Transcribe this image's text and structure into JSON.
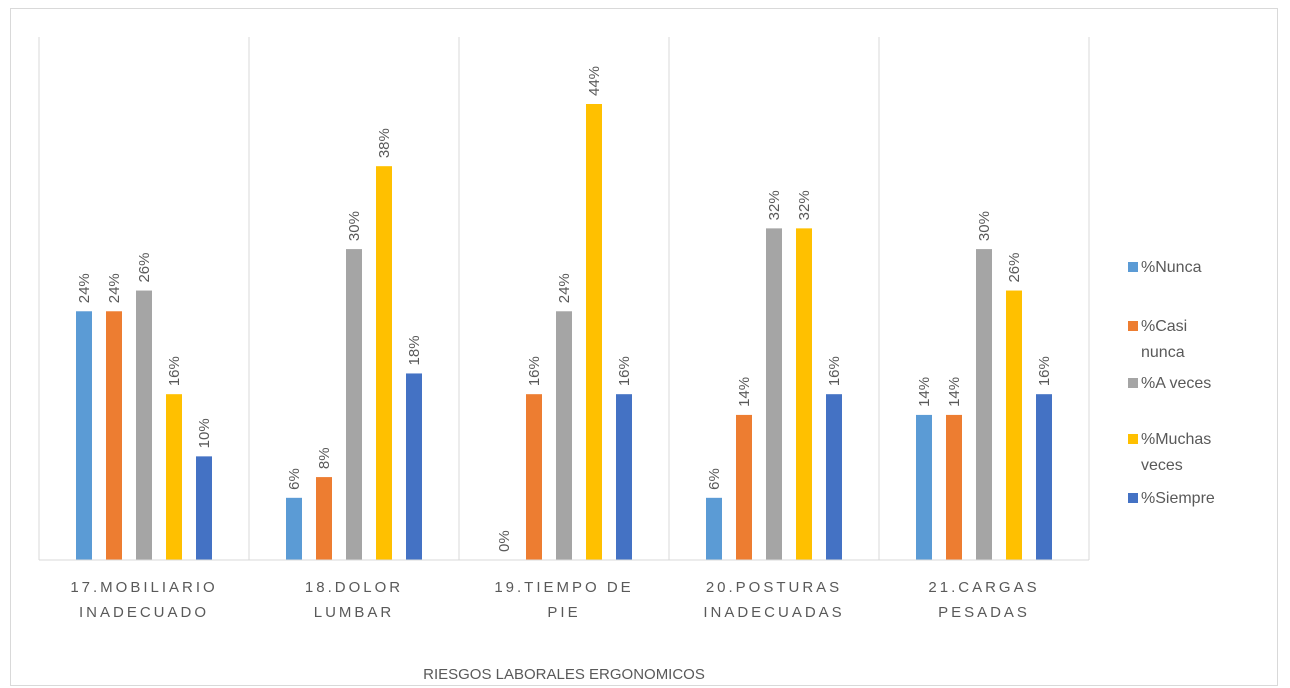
{
  "chart_data": {
    "type": "bar",
    "title": "",
    "xlabel": "RIESGOS LABORALES ERGONOMICOS",
    "ylabel": "",
    "ylim": [
      0,
      46
    ],
    "grid": "vertical separators between categories",
    "legend_position": "right",
    "categories": [
      [
        "17.MOBILIARIO",
        "INADECUADO"
      ],
      [
        "18.DOLOR",
        "LUMBAR"
      ],
      [
        "19.TIEMPO DE",
        "PIE"
      ],
      [
        "20.POSTURAS",
        "INADECUADAS"
      ],
      [
        "21.CARGAS",
        "PESADAS"
      ]
    ],
    "series": [
      {
        "name": [
          "%Nunca"
        ],
        "color": "#5b9bd5",
        "values": [
          24,
          6,
          0,
          6,
          14
        ],
        "labels": [
          "24%",
          "6%",
          "0%",
          "6%",
          "14%"
        ]
      },
      {
        "name": [
          "%Casi",
          "nunca"
        ],
        "color": "#ed7d31",
        "values": [
          24,
          8,
          16,
          14,
          14
        ],
        "labels": [
          "24%",
          "8%",
          "16%",
          "14%",
          "14%"
        ]
      },
      {
        "name": [
          "%A veces"
        ],
        "color": "#a5a5a5",
        "values": [
          26,
          30,
          24,
          32,
          30
        ],
        "labels": [
          "26%",
          "30%",
          "24%",
          "32%",
          "30%"
        ]
      },
      {
        "name": [
          "%Muchas",
          "veces"
        ],
        "color": "#ffc000",
        "values": [
          16,
          38,
          44,
          32,
          26
        ],
        "labels": [
          "16%",
          "38%",
          "44%",
          "32%",
          "26%"
        ]
      },
      {
        "name": [
          "%Siempre"
        ],
        "color": "#4472c4",
        "values": [
          10,
          18,
          16,
          16,
          16
        ],
        "labels": [
          "10%",
          "18%",
          "16%",
          "16%",
          "16%"
        ]
      }
    ]
  }
}
